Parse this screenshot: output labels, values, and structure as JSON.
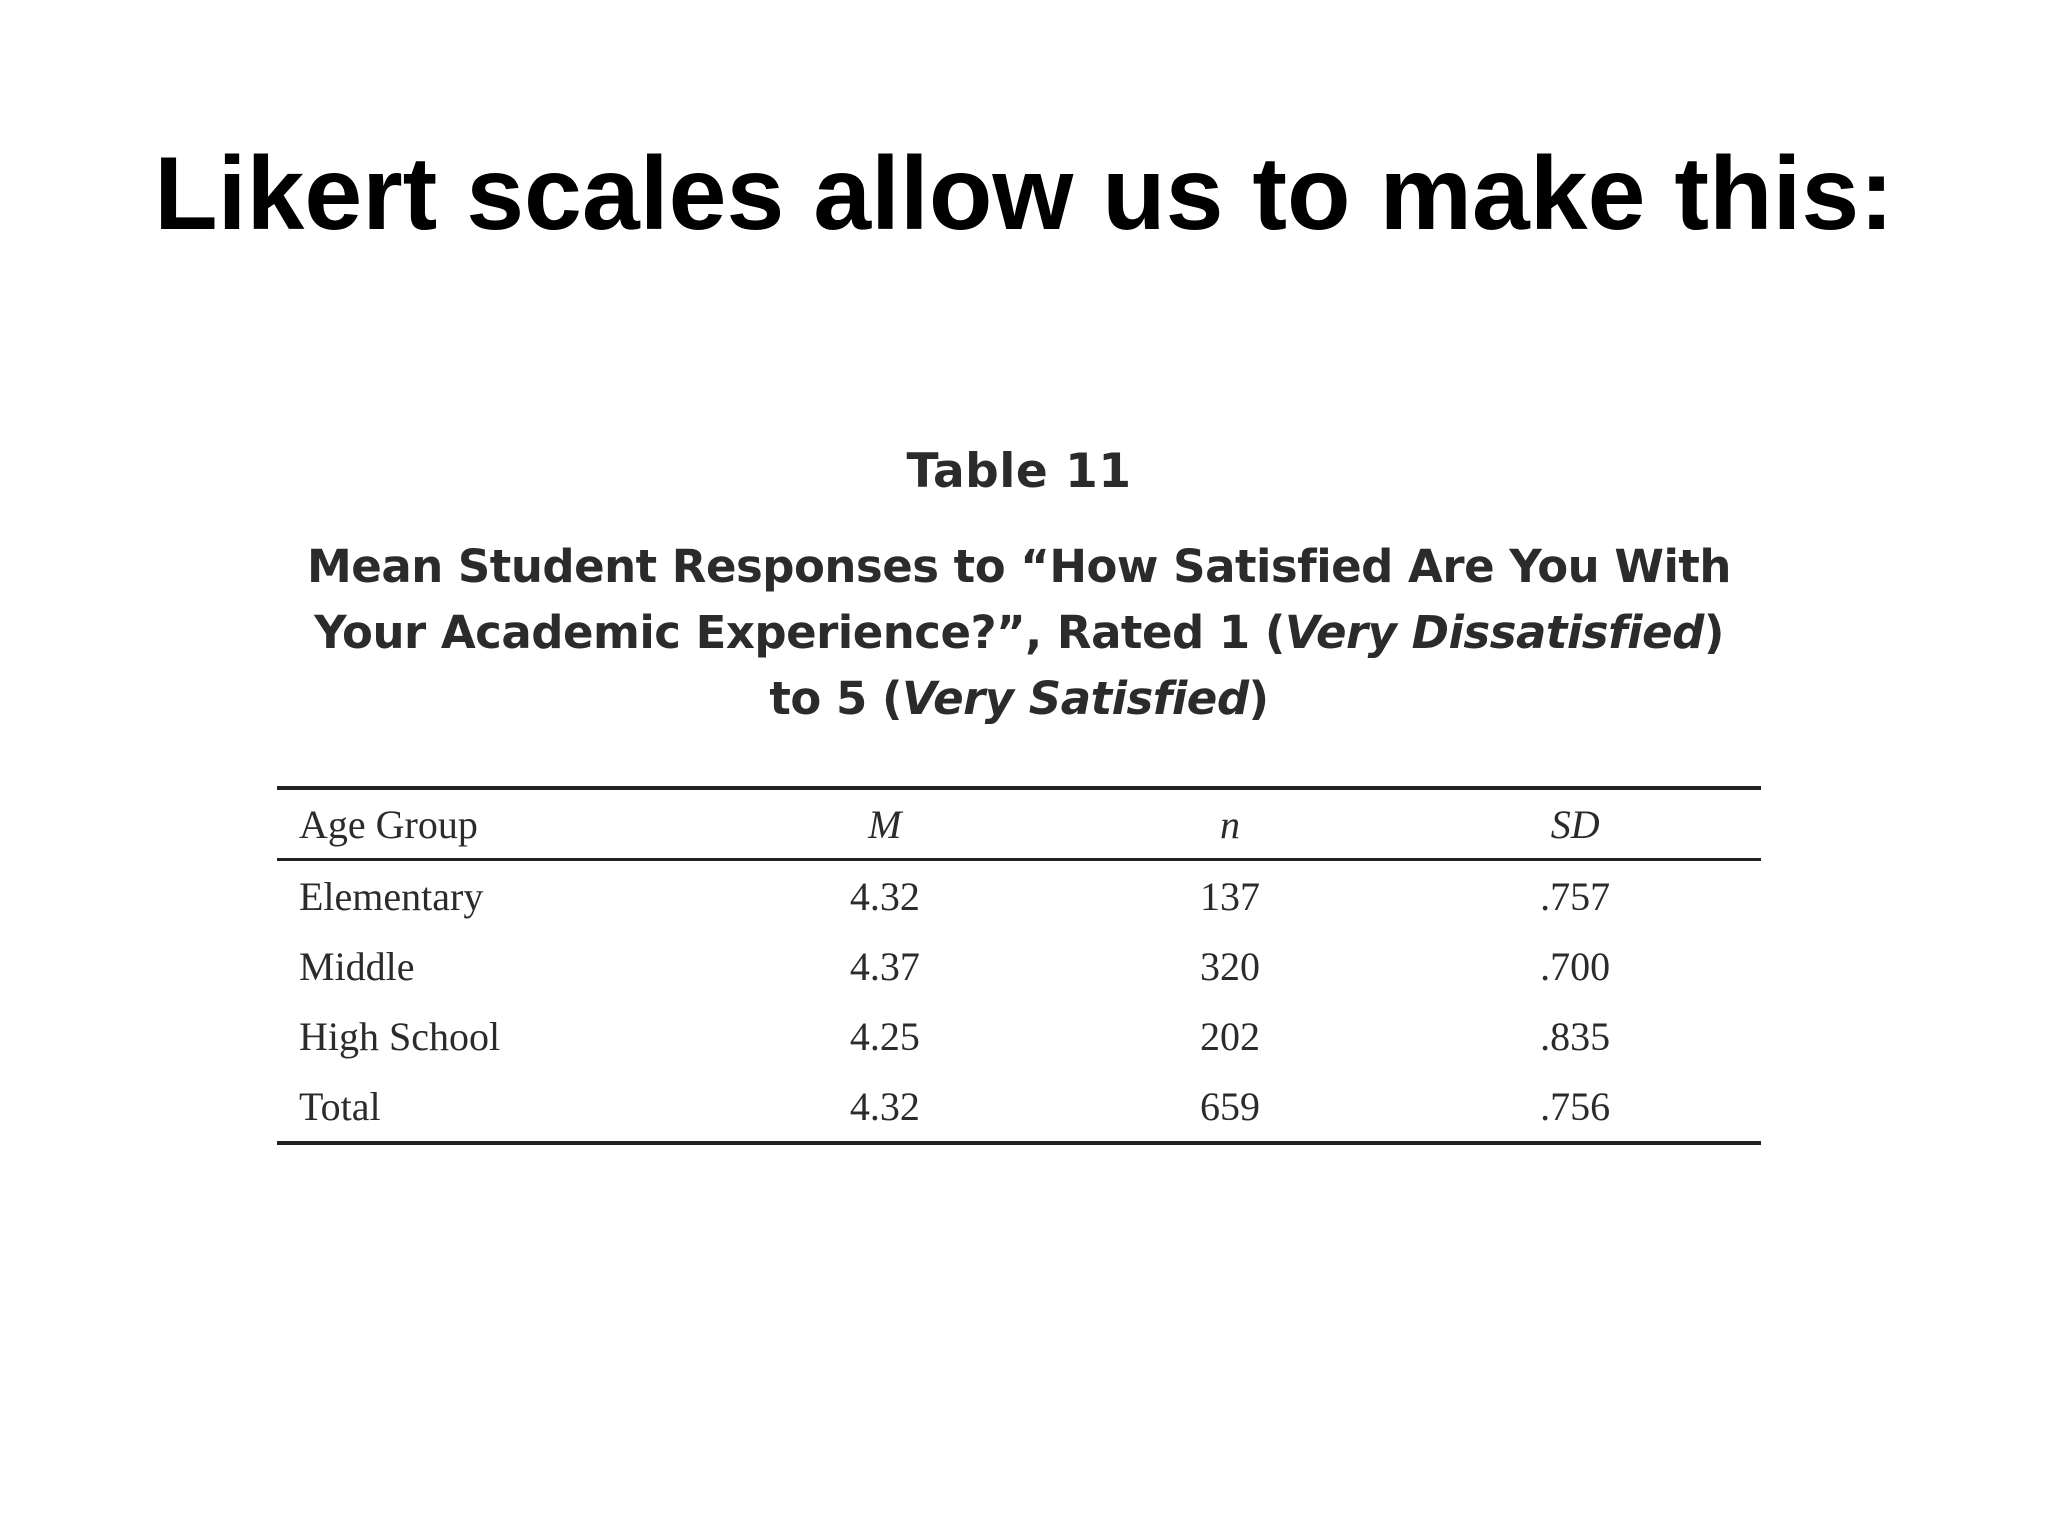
{
  "slide": {
    "title": "Likert scales allow us to make this:"
  },
  "table": {
    "label": "Table 11",
    "caption_line1": "Mean Student Responses to “How Satisfied Are You With",
    "caption_line2_a": "Your Academic Experience?”, Rated 1 (",
    "caption_line2_italic": "Very Dissatisfied",
    "caption_line2_b": ")",
    "caption_line3_a": "to 5 (",
    "caption_line3_italic": "Very Satisfied",
    "caption_line3_b": ")",
    "headers": {
      "group": "Age Group",
      "mean": "M",
      "n": "n",
      "sd": "SD"
    },
    "rows": [
      {
        "group": "Elementary",
        "mean": "4.32",
        "n": "137",
        "sd": ".757"
      },
      {
        "group": "Middle",
        "mean": "4.37",
        "n": "320",
        "sd": ".700"
      },
      {
        "group": "High School",
        "mean": "4.25",
        "n": "202",
        "sd": ".835"
      },
      {
        "group": "Total",
        "mean": "4.32",
        "n": "659",
        "sd": ".756"
      }
    ]
  }
}
